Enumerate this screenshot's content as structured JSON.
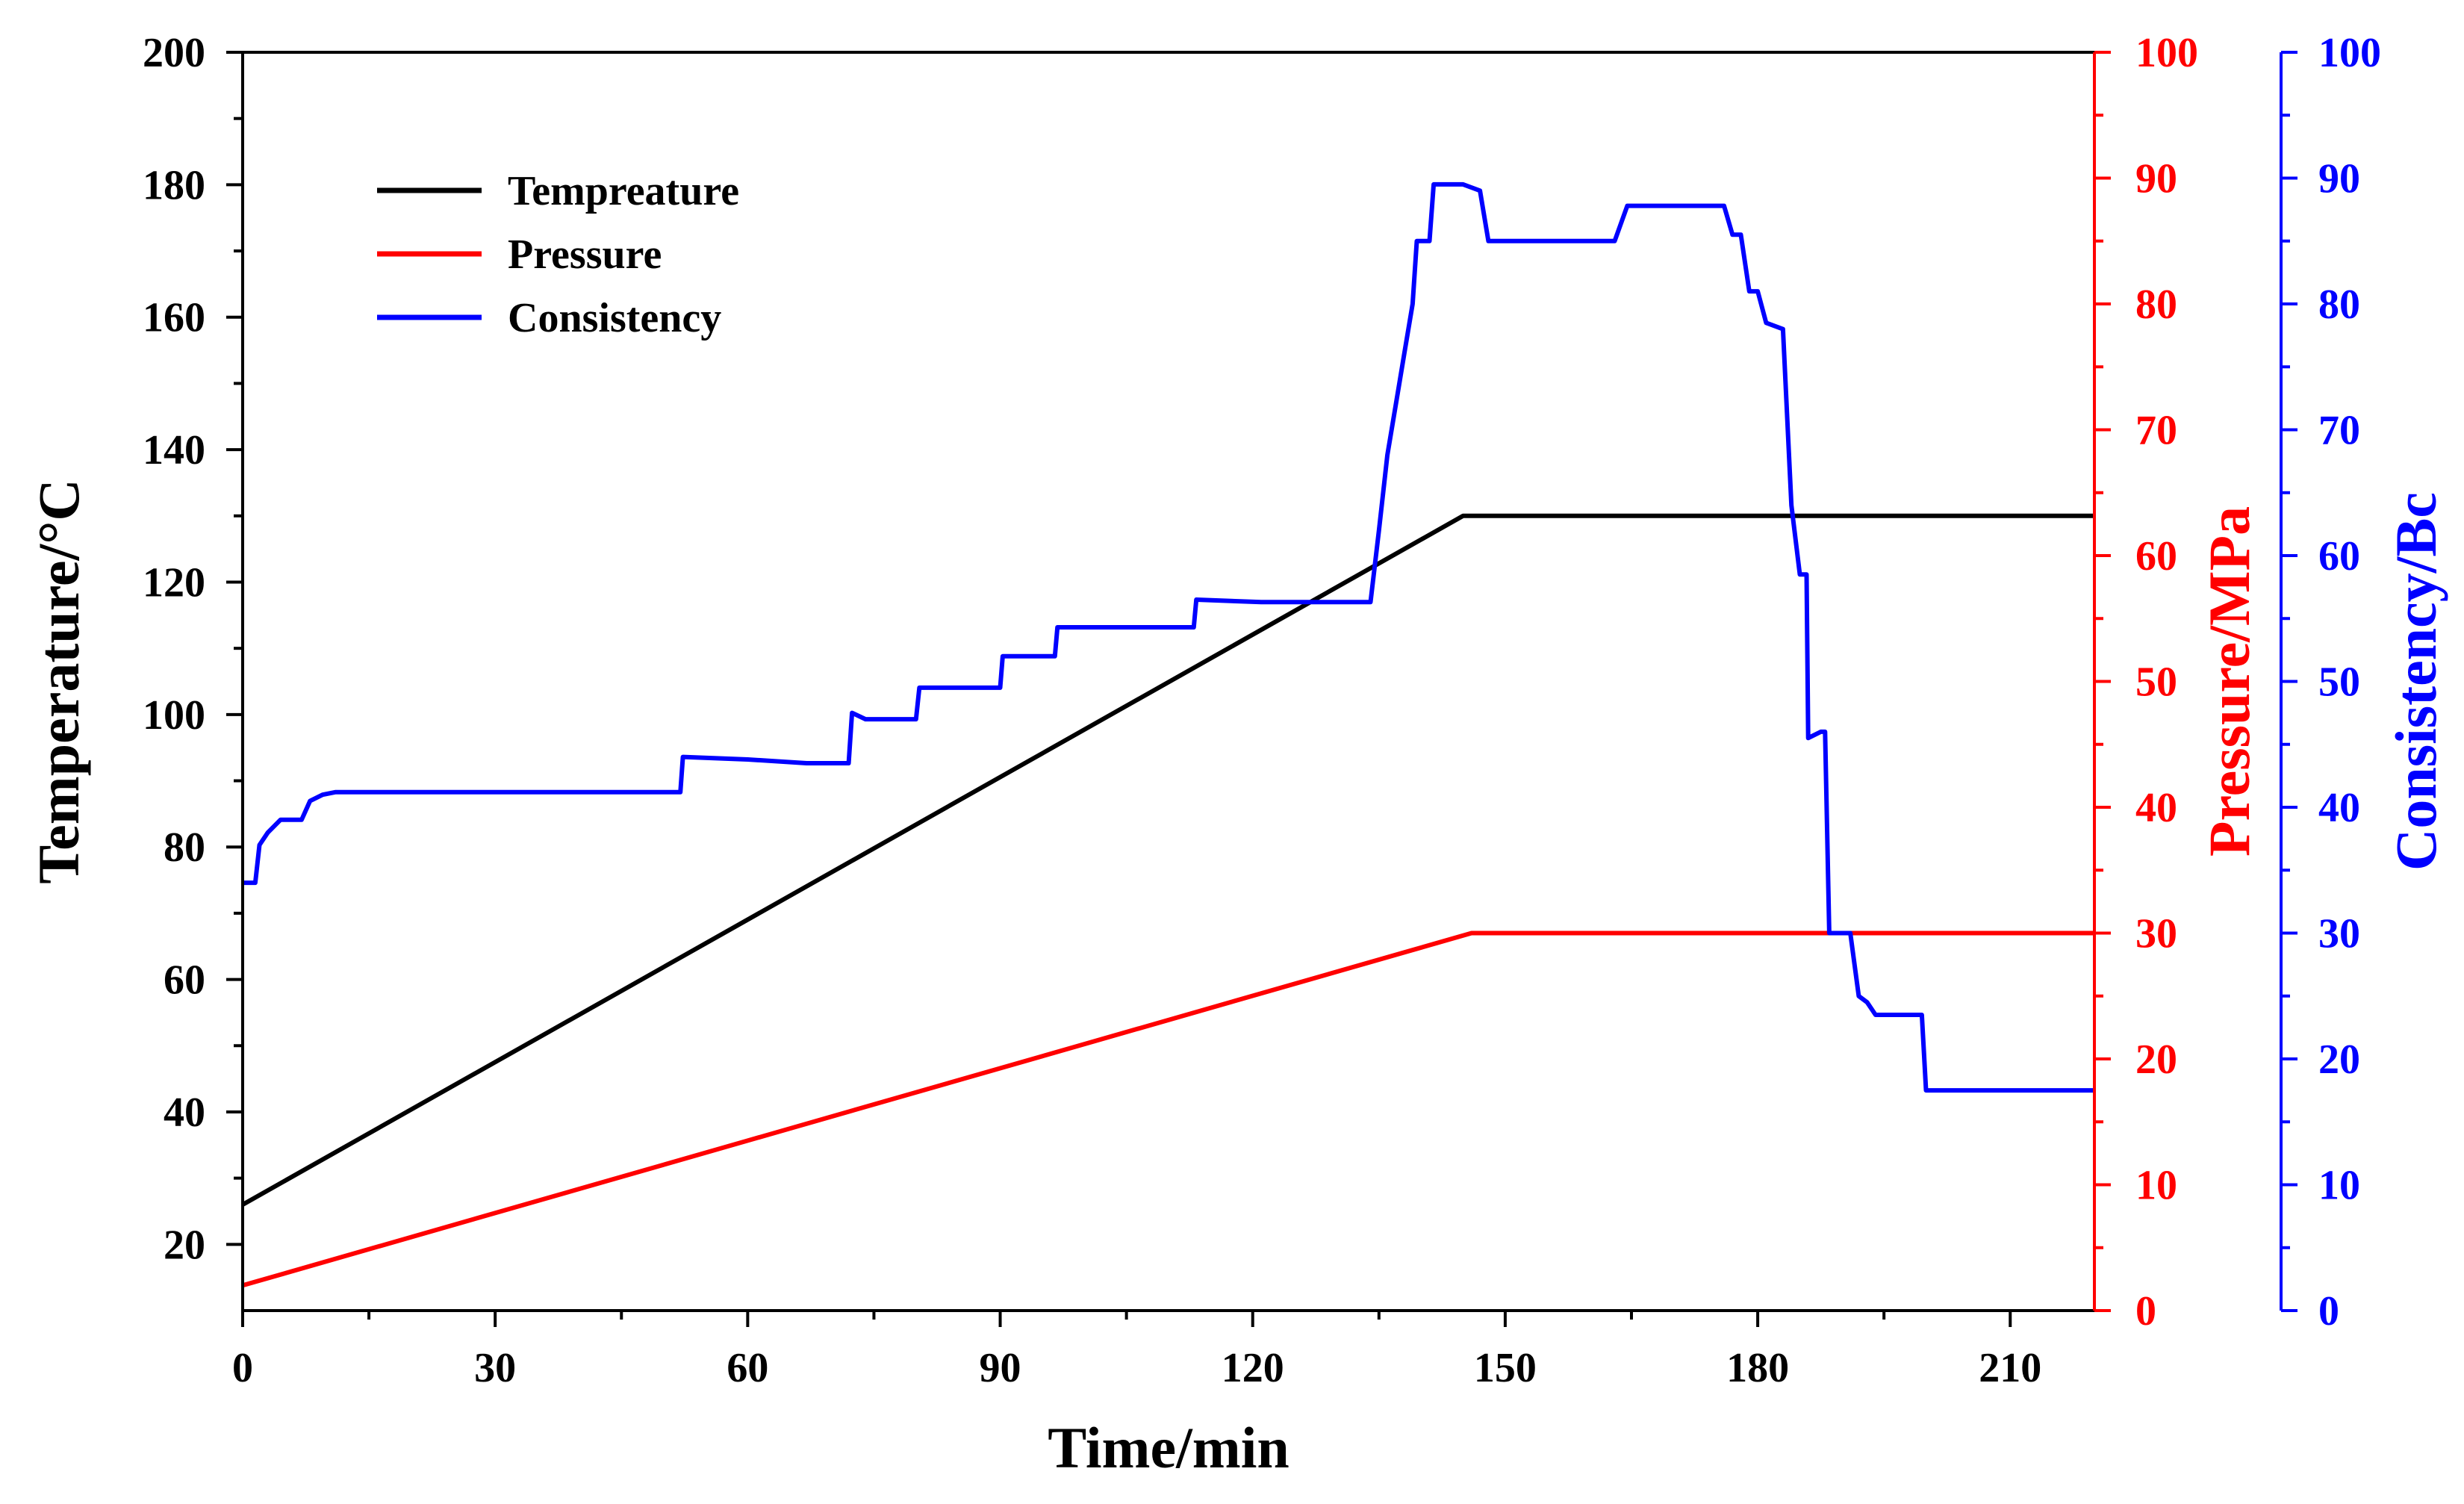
{
  "chart_data": {
    "type": "line",
    "title": "",
    "xlabel": "Time/min",
    "xlim": [
      0,
      220
    ],
    "xticks": [
      0,
      30,
      60,
      90,
      120,
      150,
      180,
      210
    ],
    "axes": {
      "temperature": {
        "label": "Temperature/°C",
        "ylim": [
          10,
          200
        ],
        "ticks": [
          20,
          40,
          60,
          80,
          100,
          120,
          140,
          160,
          180,
          200
        ],
        "color": "#000000"
      },
      "pressure": {
        "label": "Pressure/MPa",
        "ylim": [
          0,
          100
        ],
        "ticks": [
          0,
          10,
          20,
          30,
          40,
          50,
          60,
          70,
          80,
          90,
          100
        ],
        "color": "#ff0000"
      },
      "consistency": {
        "label": "Consistency/Bc",
        "ylim": [
          0,
          100
        ],
        "ticks": [
          0,
          10,
          20,
          30,
          40,
          50,
          60,
          70,
          80,
          90,
          100
        ],
        "color": "#0000ff"
      }
    },
    "legend_position": "top-left",
    "series": [
      {
        "name": "Tempreature",
        "axis": "temperature",
        "color": "#000000",
        "points": [
          [
            0,
            26
          ],
          [
            145,
            130
          ],
          [
            220,
            130
          ]
        ]
      },
      {
        "name": "Pressure",
        "axis": "pressure",
        "color": "#ff0000",
        "points": [
          [
            0,
            2
          ],
          [
            146,
            30
          ],
          [
            220,
            30
          ]
        ]
      },
      {
        "name": "Consistency",
        "axis": "consistency",
        "color": "#0000ff",
        "points": [
          [
            0,
            34
          ],
          [
            1.5,
            34
          ],
          [
            2,
            37
          ],
          [
            3,
            38
          ],
          [
            4.5,
            39
          ],
          [
            7,
            39
          ],
          [
            8,
            40.5
          ],
          [
            9.5,
            41
          ],
          [
            11,
            41.2
          ],
          [
            20,
            41.2
          ],
          [
            35,
            41.2
          ],
          [
            52,
            41.2
          ],
          [
            52.3,
            44
          ],
          [
            60,
            43.8
          ],
          [
            67,
            43.5
          ],
          [
            72,
            43.5
          ],
          [
            72.4,
            47.5
          ],
          [
            74,
            47
          ],
          [
            80,
            47
          ],
          [
            80.4,
            49.5
          ],
          [
            90,
            49.5
          ],
          [
            90.3,
            52
          ],
          [
            96.5,
            52
          ],
          [
            96.8,
            54.3
          ],
          [
            113,
            54.3
          ],
          [
            113.3,
            56.5
          ],
          [
            121,
            56.3
          ],
          [
            128,
            56.3
          ],
          [
            134,
            56.3
          ],
          [
            135,
            62
          ],
          [
            136,
            68
          ],
          [
            137,
            72
          ],
          [
            138,
            76
          ],
          [
            139,
            80
          ],
          [
            139.5,
            85
          ],
          [
            140,
            85
          ],
          [
            141,
            85
          ],
          [
            141.5,
            89.5
          ],
          [
            145,
            89.5
          ],
          [
            147,
            89
          ],
          [
            148,
            85
          ],
          [
            163,
            85
          ],
          [
            164.5,
            87.8
          ],
          [
            176,
            87.8
          ],
          [
            177,
            85.5
          ],
          [
            178,
            85.5
          ],
          [
            179,
            81
          ],
          [
            180,
            81
          ],
          [
            181,
            78.5
          ],
          [
            183,
            78
          ],
          [
            184,
            64
          ],
          [
            185,
            58.5
          ],
          [
            185.8,
            58.5
          ],
          [
            186,
            45.5
          ],
          [
            187.5,
            46
          ],
          [
            188,
            46
          ],
          [
            188.5,
            30
          ],
          [
            191,
            30
          ],
          [
            192,
            25
          ],
          [
            193,
            24.5
          ],
          [
            194,
            23.5
          ],
          [
            199.5,
            23.5
          ],
          [
            200,
            17.5
          ],
          [
            210,
            17.5
          ],
          [
            215,
            17.5
          ],
          [
            220,
            17.5
          ]
        ]
      }
    ]
  }
}
